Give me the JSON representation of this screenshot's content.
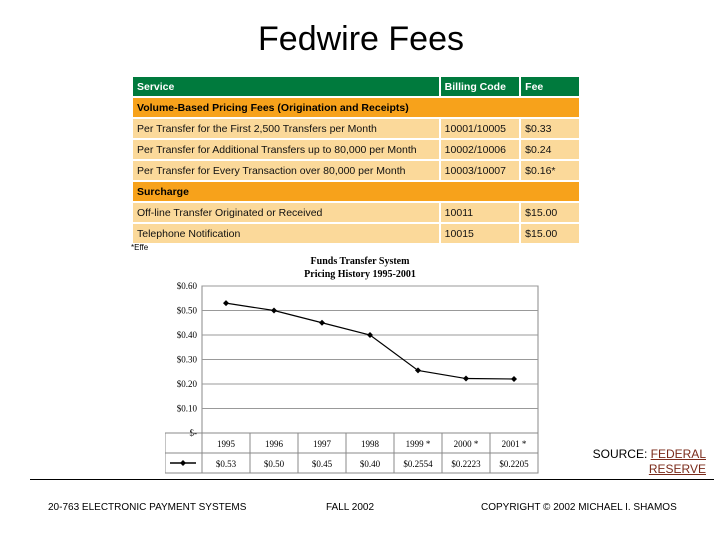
{
  "title": "Fedwire Fees",
  "table": {
    "headers": [
      "Service",
      "Billing Code",
      "Fee"
    ],
    "sections": [
      {
        "name": "Volume-Based Pricing Fees (Origination and Receipts)",
        "rows": [
          [
            "Per Transfer for the First 2,500 Transfers per Month",
            "10001/10005",
            "$0.33"
          ],
          [
            "Per Transfer for Additional Transfers up to 80,000 per Month",
            "10002/10006",
            "$0.24"
          ],
          [
            "Per Transfer for Every Transaction over 80,000 per Month",
            "10003/10007",
            "$0.16*"
          ]
        ]
      },
      {
        "name": "Surcharge",
        "rows": [
          [
            "Off-line Transfer Originated or Received",
            "10011",
            "$15.00"
          ],
          [
            "Telephone Notification",
            "10015",
            "$15.00"
          ]
        ]
      }
    ],
    "footnote": "*Effe"
  },
  "chart_data": {
    "type": "line",
    "title": "Funds Transfer System",
    "subtitle": "Pricing History 1995-2001",
    "categories": [
      "1995",
      "1996",
      "1997",
      "1998",
      "1999 *",
      "2000 *",
      "2001 *"
    ],
    "series": [
      {
        "values": [
          0.53,
          0.5,
          0.45,
          0.4,
          0.2554,
          0.2223,
          0.2205
        ],
        "labels": [
          "$0.53",
          "$0.50",
          "$0.45",
          "$0.40",
          "$0.2554",
          "$0.2223",
          "$0.2205"
        ],
        "color": "#000000"
      }
    ],
    "yticks": [
      0.6,
      0.5,
      0.4,
      0.3,
      0.2,
      0.1,
      0
    ],
    "ytick_labels": [
      "$0.60",
      "$0.50",
      "$0.40",
      "$0.30",
      "$0.20",
      "$0.10",
      "$-"
    ],
    "ylim": [
      0,
      0.6
    ],
    "grid": true,
    "data_table": true
  },
  "source": {
    "label": "SOURCE:",
    "link": "FEDERAL RESERVE"
  },
  "footer": {
    "left": "20-763 ELECTRONIC PAYMENT SYSTEMS",
    "center": "FALL 2002",
    "right": "COPYRIGHT © 2002 MICHAEL I. SHAMOS"
  }
}
